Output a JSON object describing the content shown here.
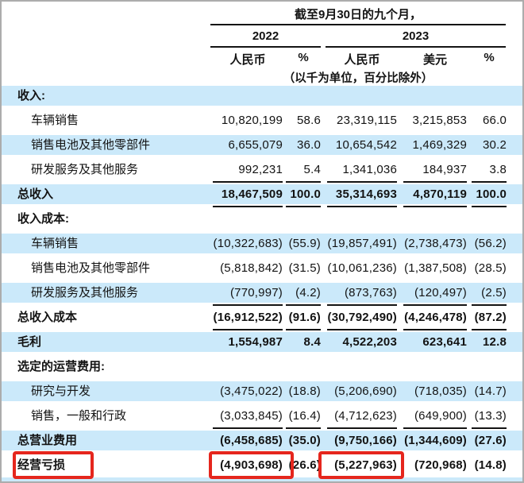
{
  "header": {
    "period_title": "截至9月30日的九个月，",
    "year_2022": "2022",
    "year_2023": "2023",
    "col_labels": [
      "人民币",
      "%",
      "人民币",
      "美元",
      "%"
    ],
    "units_note": "（以千为单位，百分比除外）"
  },
  "colors": {
    "stripe_blue": "#CBE9FA",
    "highlight_red": "#E5261D",
    "rule_black": "#141414",
    "page_border_gray": "#ACACAC",
    "text": "#131313"
  },
  "table": {
    "rows": [
      {
        "label": "收入:",
        "cells": [
          "",
          "",
          "",
          "",
          ""
        ]
      },
      {
        "label": "车辆销售",
        "cells": [
          "10,820,199",
          "58.6",
          "23,319,115",
          "3,215,853",
          "66.0"
        ]
      },
      {
        "label": "销售电池及其他零部件",
        "cells": [
          "6,655,079",
          "36.0",
          "10,654,542",
          "1,469,329",
          "30.2"
        ]
      },
      {
        "label": "研发服务及其他服务",
        "cells": [
          "992,231",
          "5.4",
          "1,341,036",
          "184,937",
          "3.8"
        ]
      },
      {
        "label": "总收入",
        "cells": [
          "18,467,509",
          "100.0",
          "35,314,693",
          "4,870,119",
          "100.0"
        ]
      },
      {
        "label": "收入成本:",
        "cells": [
          "",
          "",
          "",
          "",
          ""
        ]
      },
      {
        "label": "车辆销售",
        "cells": [
          "(10,322,683)",
          "(55.9)",
          "(19,857,491)",
          "(2,738,473)",
          "(56.2)"
        ]
      },
      {
        "label": "销售电池及其他零部件",
        "cells": [
          "(5,818,842)",
          "(31.5)",
          "(10,061,236)",
          "(1,387,508)",
          "(28.5)"
        ]
      },
      {
        "label": "研发服务及其他服务",
        "cells": [
          "(770,997)",
          "(4.2)",
          "(873,763)",
          "(120,497)",
          "(2.5)"
        ]
      },
      {
        "label": "总收入成本",
        "cells": [
          "(16,912,522)",
          "(91.6)",
          "(30,792,490)",
          "(4,246,478)",
          "(87.2)"
        ]
      },
      {
        "label": "毛利",
        "cells": [
          "1,554,987",
          "8.4",
          "4,522,203",
          "623,641",
          "12.8"
        ]
      },
      {
        "label": "选定的运营费用:",
        "cells": [
          "",
          "",
          "",
          "",
          ""
        ]
      },
      {
        "label": "研究与开发",
        "cells": [
          "(3,475,022)",
          "(18.8)",
          "(5,206,690)",
          "(718,035)",
          "(14.7)"
        ]
      },
      {
        "label": "销售，一般和行政",
        "cells": [
          "(3,033,845)",
          "(16.4)",
          "(4,712,623)",
          "(649,900)",
          "(13.3)"
        ]
      },
      {
        "label": "总营业费用",
        "cells": [
          "(6,458,685)",
          "(35.0)",
          "(9,750,166)",
          "(1,344,609)",
          "(27.6)"
        ]
      },
      {
        "label": "经营亏损",
        "cells": [
          "(4,903,698)",
          "(26.6)",
          "(5,227,963)",
          "(720,968)",
          "(14.8)"
        ]
      }
    ]
  },
  "annotations": {
    "highlighted_row_label": "经营亏损",
    "highlighted_values": [
      "(4,903,698)",
      "(5,227,963)"
    ]
  }
}
